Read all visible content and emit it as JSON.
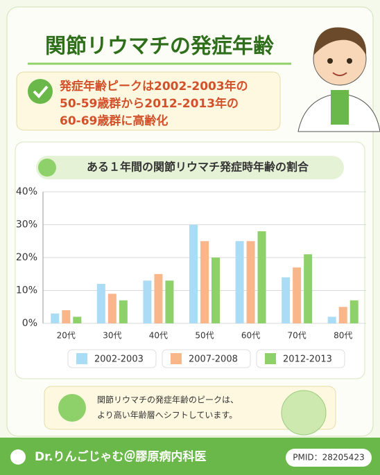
{
  "header": {
    "title": "関節リウマチの発症年齢"
  },
  "callout": {
    "lines": [
      "発症年齢ピークは2002-2003年の",
      "50-59歳群から2012-2013年の",
      "60-69歳群に高齢化"
    ]
  },
  "chart_data": {
    "type": "bar",
    "title": "ある１年間の関節リウマチ発症時年齢の割合",
    "categories": [
      "20代",
      "30代",
      "40代",
      "50代",
      "60代",
      "70代",
      "80代"
    ],
    "series": [
      {
        "name": "2002-2003",
        "color": "#aadcf6",
        "values": [
          3,
          12,
          13,
          30,
          25,
          14,
          2
        ]
      },
      {
        "name": "2007-2008",
        "color": "#f9b68b",
        "values": [
          4,
          9,
          15,
          25,
          25,
          17,
          5
        ]
      },
      {
        "name": "2012-2013",
        "color": "#8ed16b",
        "values": [
          2,
          7,
          13,
          20,
          28,
          21,
          7
        ]
      }
    ],
    "ylim": [
      0,
      40
    ],
    "yticks": [
      {
        "value": 0,
        "label": "0%"
      },
      {
        "value": 10,
        "label": "10%"
      },
      {
        "value": 20,
        "label": "20%"
      },
      {
        "value": 30,
        "label": "30%"
      },
      {
        "value": 40,
        "label": "40%"
      }
    ],
    "grid": true
  },
  "note": {
    "lines": [
      "関節リウマチの発症年齢のピークは、",
      "より高い年齢層へシフトしています。"
    ]
  },
  "footer": {
    "author": "Dr.りんごじゃむ＠膠原病内科医",
    "pmid": "PMID：28205423"
  }
}
